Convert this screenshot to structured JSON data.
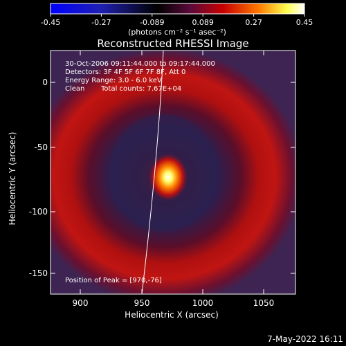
{
  "colorbar": {
    "ticks": [
      "-0.45",
      "-0.27",
      "-0.089",
      "0.089",
      "0.27",
      "0.45"
    ],
    "units_label": "(photons cm⁻² s⁻¹ asec⁻²)",
    "colors": [
      "#0000ff",
      "#1a1aa0",
      "#000000",
      "#4a0a3a",
      "#c80000",
      "#ff7a00",
      "#ffff60",
      "#ffffff"
    ]
  },
  "title": "Reconstructed RHESSI Image",
  "info": {
    "line1": "30-Oct-2006 09:11:44.000 to 09:17:44.000",
    "line2": "Detectors: 3F 4F 5F 6F 7F 8F, Att 0",
    "line3": "Energy Range: 3.0 - 6.0 keV",
    "line4_a": "Clean",
    "line4_b": "Total counts: 7.67E+04"
  },
  "peak_label": "Position of Peak = [970,-76]",
  "axes": {
    "xlabel": "Heliocentric X (arcsec)",
    "ylabel": "Heliocentric Y (arcsec)",
    "xlim": [
      878,
      1070
    ],
    "ylim": [
      -168,
      20
    ],
    "xticks": [
      900,
      950,
      1000,
      1050
    ],
    "yticks": [
      0,
      -50,
      -100,
      -150
    ]
  },
  "footer_timestamp": "7-May-2022 16:11"
}
